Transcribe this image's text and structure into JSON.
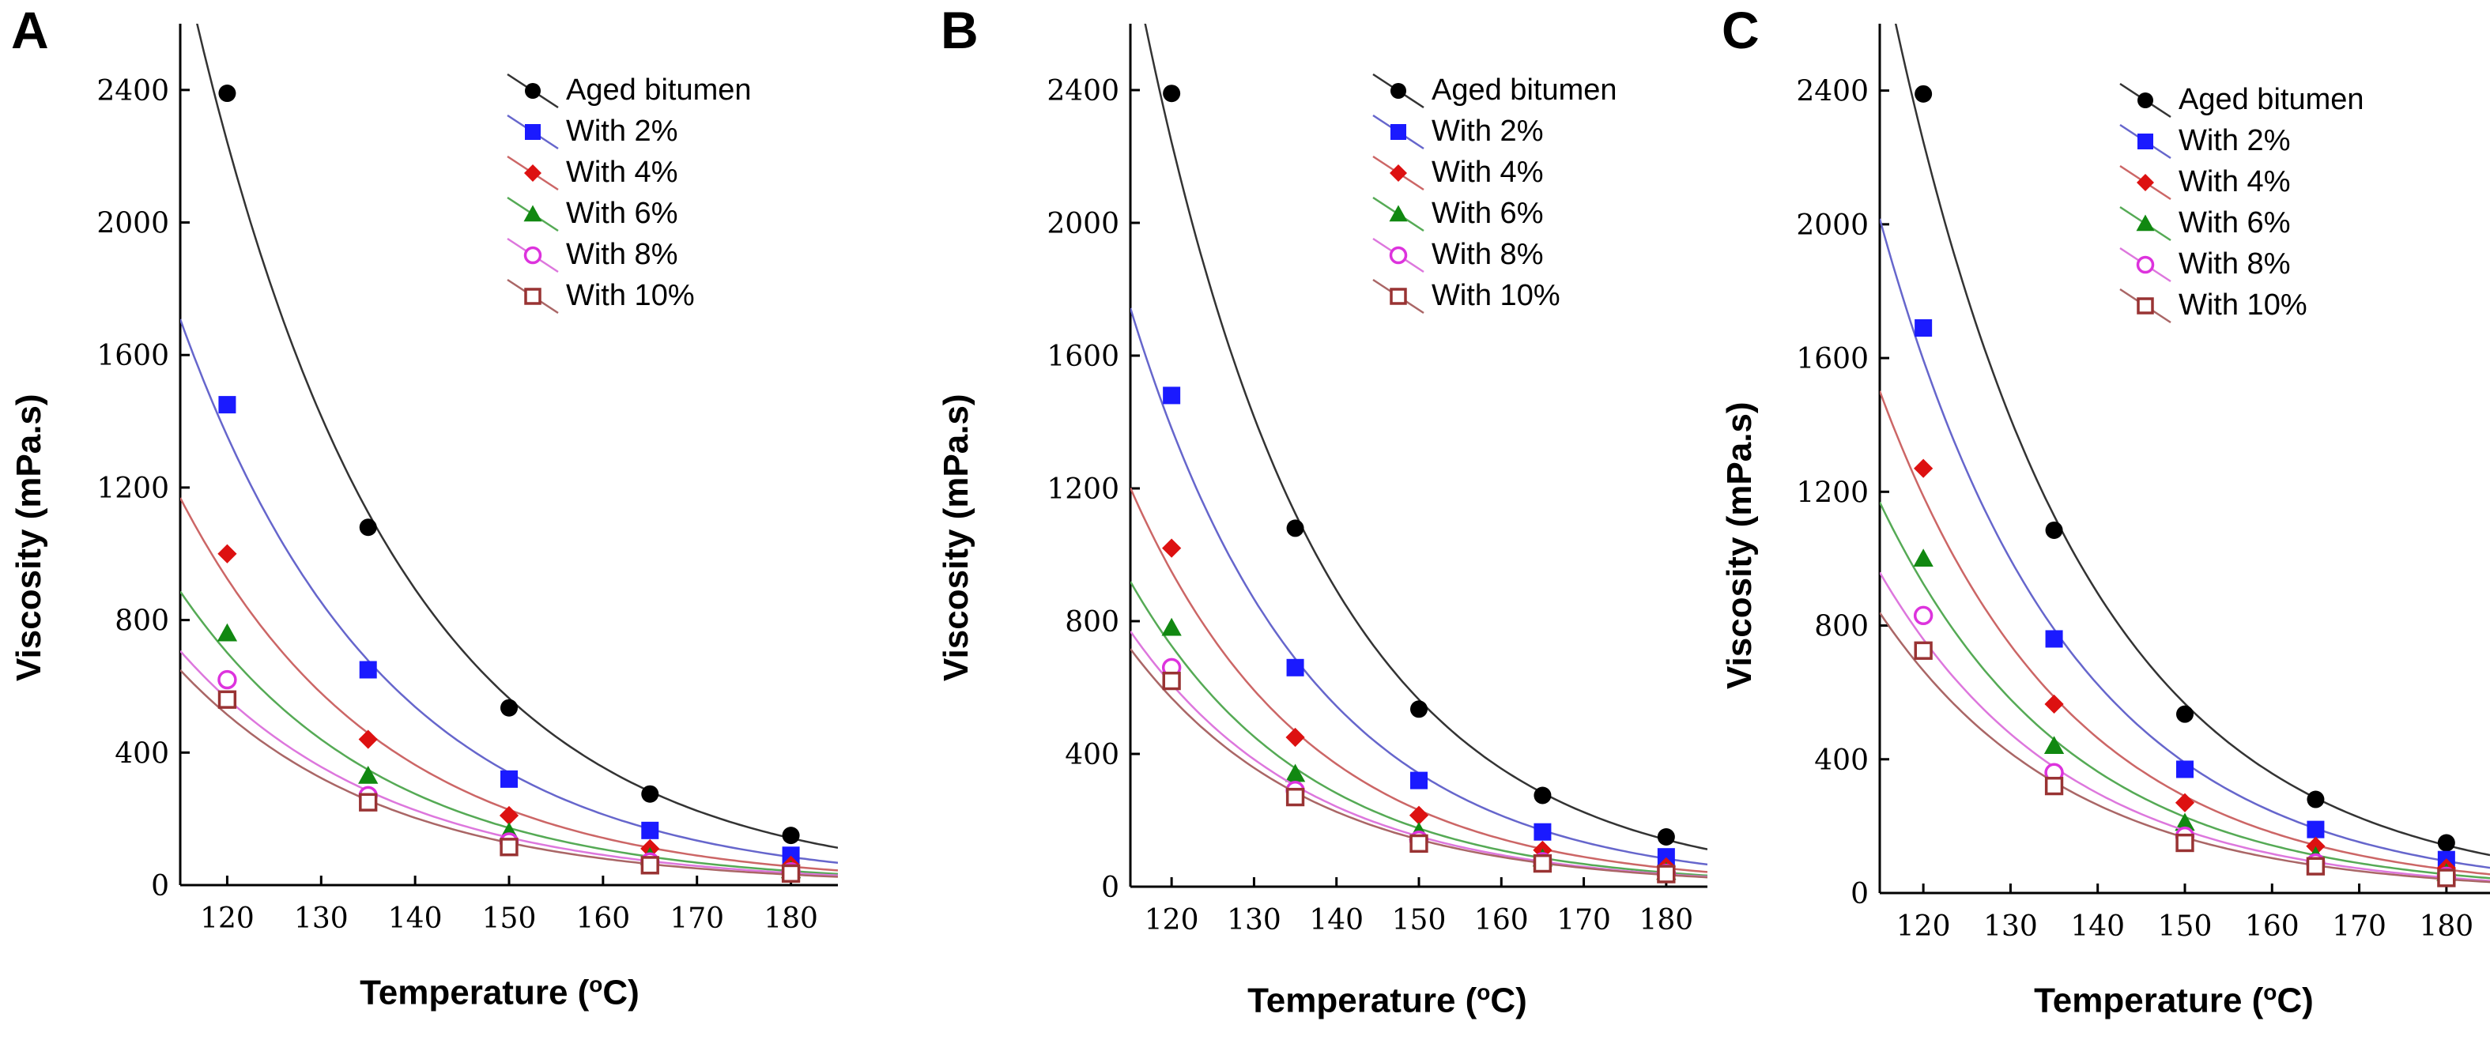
{
  "chart_data": [
    {
      "panel": "A",
      "type": "scatter",
      "xlabel_main": "Temperature (",
      "xlabel_unit": "o",
      "xlabel_tail": "C)",
      "ylabel": "Viscosity (mPa.s)",
      "xlim": [
        115,
        185
      ],
      "ylim": [
        0,
        2600
      ],
      "xticks": [
        120,
        130,
        140,
        150,
        160,
        170,
        180
      ],
      "yticks": [
        0,
        400,
        800,
        1200,
        1600,
        2000,
        2400
      ],
      "x": [
        120,
        135,
        150,
        165,
        180
      ],
      "series": [
        {
          "name": "Aged bitumen",
          "marker": "circle-filled",
          "color": "#000000",
          "line": "#333333",
          "values": [
            2390,
            1080,
            535,
            275,
            150
          ]
        },
        {
          "name": "With 2%",
          "marker": "square-filled",
          "color": "#1a1aff",
          "line": "#6666cc",
          "values": [
            1450,
            650,
            320,
            165,
            90
          ]
        },
        {
          "name": "With 4%",
          "marker": "diamond-filled",
          "color": "#dd1111",
          "line": "#cc6666",
          "values": [
            1000,
            440,
            210,
            110,
            60
          ]
        },
        {
          "name": "With 6%",
          "marker": "triangle-filled",
          "color": "#118811",
          "line": "#55aa55",
          "values": [
            760,
            330,
            160,
            85,
            45
          ]
        },
        {
          "name": "With 8%",
          "marker": "circle-open",
          "color": "#dd33dd",
          "line": "#dd77dd",
          "values": [
            620,
            270,
            130,
            70,
            40
          ]
        },
        {
          "name": "With 10%",
          "marker": "square-open",
          "color": "#993333",
          "line": "#aa6666",
          "values": [
            560,
            250,
            115,
            60,
            35
          ]
        }
      ]
    },
    {
      "panel": "B",
      "type": "scatter",
      "xlabel_main": "Temperature (",
      "xlabel_unit": "o",
      "xlabel_tail": "C)",
      "ylabel": "Viscosity (mPa.s)",
      "xlim": [
        115,
        185
      ],
      "ylim": [
        0,
        2600
      ],
      "xticks": [
        120,
        130,
        140,
        150,
        160,
        170,
        180
      ],
      "yticks": [
        0,
        400,
        800,
        1200,
        1600,
        2000,
        2400
      ],
      "x": [
        120,
        135,
        150,
        165,
        180
      ],
      "series": [
        {
          "name": "Aged bitumen",
          "marker": "circle-filled",
          "color": "#000000",
          "line": "#333333",
          "values": [
            2390,
            1080,
            535,
            275,
            150
          ]
        },
        {
          "name": "With 2%",
          "marker": "square-filled",
          "color": "#1a1aff",
          "line": "#6666cc",
          "values": [
            1480,
            660,
            320,
            165,
            90
          ]
        },
        {
          "name": "With 4%",
          "marker": "diamond-filled",
          "color": "#dd1111",
          "line": "#cc6666",
          "values": [
            1020,
            450,
            215,
            110,
            60
          ]
        },
        {
          "name": "With 6%",
          "marker": "triangle-filled",
          "color": "#118811",
          "line": "#55aa55",
          "values": [
            780,
            340,
            165,
            85,
            45
          ]
        },
        {
          "name": "With 8%",
          "marker": "circle-open",
          "color": "#dd33dd",
          "line": "#dd77dd",
          "values": [
            660,
            290,
            140,
            75,
            40
          ]
        },
        {
          "name": "With 10%",
          "marker": "square-open",
          "color": "#993333",
          "line": "#aa6666",
          "values": [
            620,
            270,
            130,
            70,
            38
          ]
        }
      ]
    },
    {
      "panel": "C",
      "type": "scatter",
      "xlabel_main": "Temperature (",
      "xlabel_unit": "o",
      "xlabel_tail": "C)",
      "ylabel": "Viscosity (mPa.s)",
      "xlim": [
        115,
        185
      ],
      "ylim": [
        0,
        2600
      ],
      "xticks": [
        120,
        130,
        140,
        150,
        160,
        170,
        180
      ],
      "yticks": [
        0,
        400,
        800,
        1200,
        1600,
        2000,
        2400
      ],
      "x": [
        120,
        135,
        150,
        165,
        180
      ],
      "series": [
        {
          "name": "Aged bitumen",
          "marker": "circle-filled",
          "color": "#000000",
          "line": "#333333",
          "values": [
            2390,
            1085,
            535,
            280,
            150
          ]
        },
        {
          "name": "With 2%",
          "marker": "square-filled",
          "color": "#1a1aff",
          "line": "#6666cc",
          "values": [
            1690,
            760,
            370,
            190,
            100
          ]
        },
        {
          "name": "With 4%",
          "marker": "diamond-filled",
          "color": "#dd1111",
          "line": "#cc6666",
          "values": [
            1270,
            565,
            270,
            140,
            75
          ]
        },
        {
          "name": "With 6%",
          "marker": "triangle-filled",
          "color": "#118811",
          "line": "#55aa55",
          "values": [
            1000,
            440,
            210,
            110,
            60
          ]
        },
        {
          "name": "With 8%",
          "marker": "circle-open",
          "color": "#dd33dd",
          "line": "#dd77dd",
          "values": [
            830,
            360,
            170,
            90,
            50
          ]
        },
        {
          "name": "With 10%",
          "marker": "square-open",
          "color": "#993333",
          "line": "#aa6666",
          "values": [
            725,
            320,
            150,
            80,
            45
          ]
        }
      ]
    }
  ]
}
